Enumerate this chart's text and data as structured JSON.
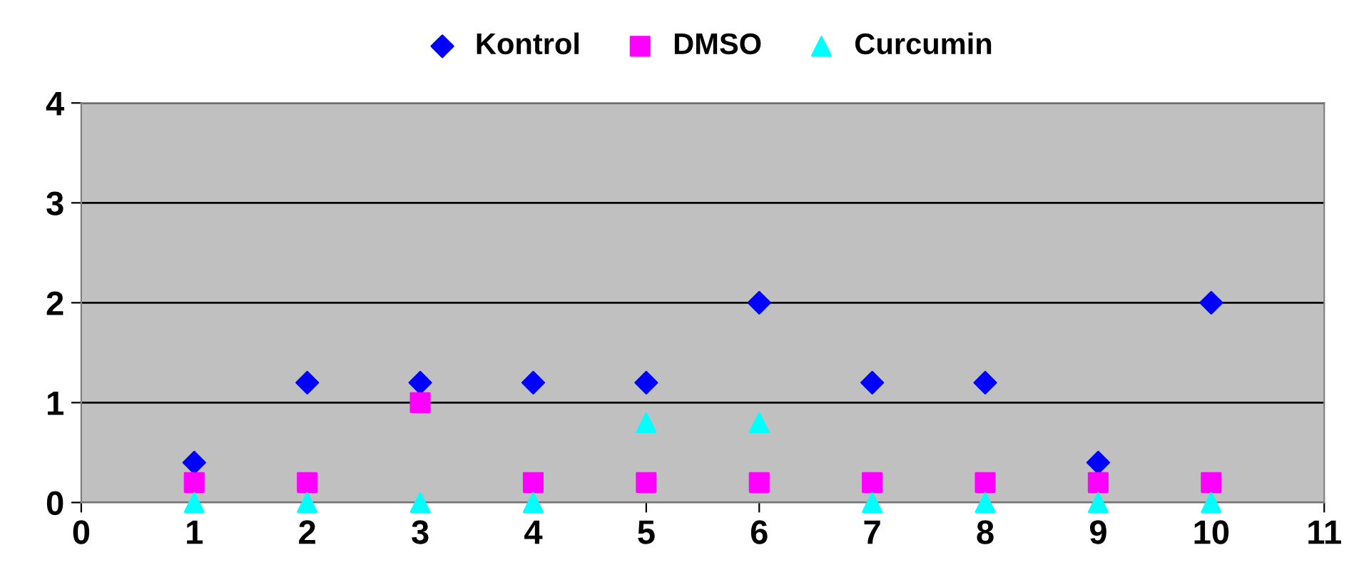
{
  "chart_data": {
    "type": "scatter",
    "x": [
      1,
      2,
      3,
      4,
      5,
      6,
      7,
      8,
      9,
      10
    ],
    "series": [
      {
        "name": "Kontrol",
        "color": "#0000ff",
        "marker": "diamond",
        "values": [
          0.4,
          1.2,
          1.2,
          1.2,
          1.2,
          2,
          1.2,
          1.2,
          0.4,
          2
        ]
      },
      {
        "name": "DMSO",
        "color": "#ff00ff",
        "marker": "square",
        "values": [
          0.2,
          0.2,
          1,
          0.2,
          0.2,
          0.2,
          0.2,
          0.2,
          0.2,
          0.2
        ]
      },
      {
        "name": "Curcumin",
        "color": "#00ffff",
        "marker": "triangle",
        "values": [
          0,
          0,
          0,
          0,
          0.8,
          0.8,
          0,
          0,
          0,
          0
        ]
      }
    ],
    "xlim": [
      0,
      11
    ],
    "xticks": [
      0,
      1,
      2,
      3,
      4,
      5,
      6,
      7,
      8,
      9,
      10,
      11
    ],
    "ylim": [
      0,
      4
    ],
    "yticks": [
      0,
      1,
      2,
      3,
      4
    ],
    "grid": "y",
    "legend": "top"
  }
}
